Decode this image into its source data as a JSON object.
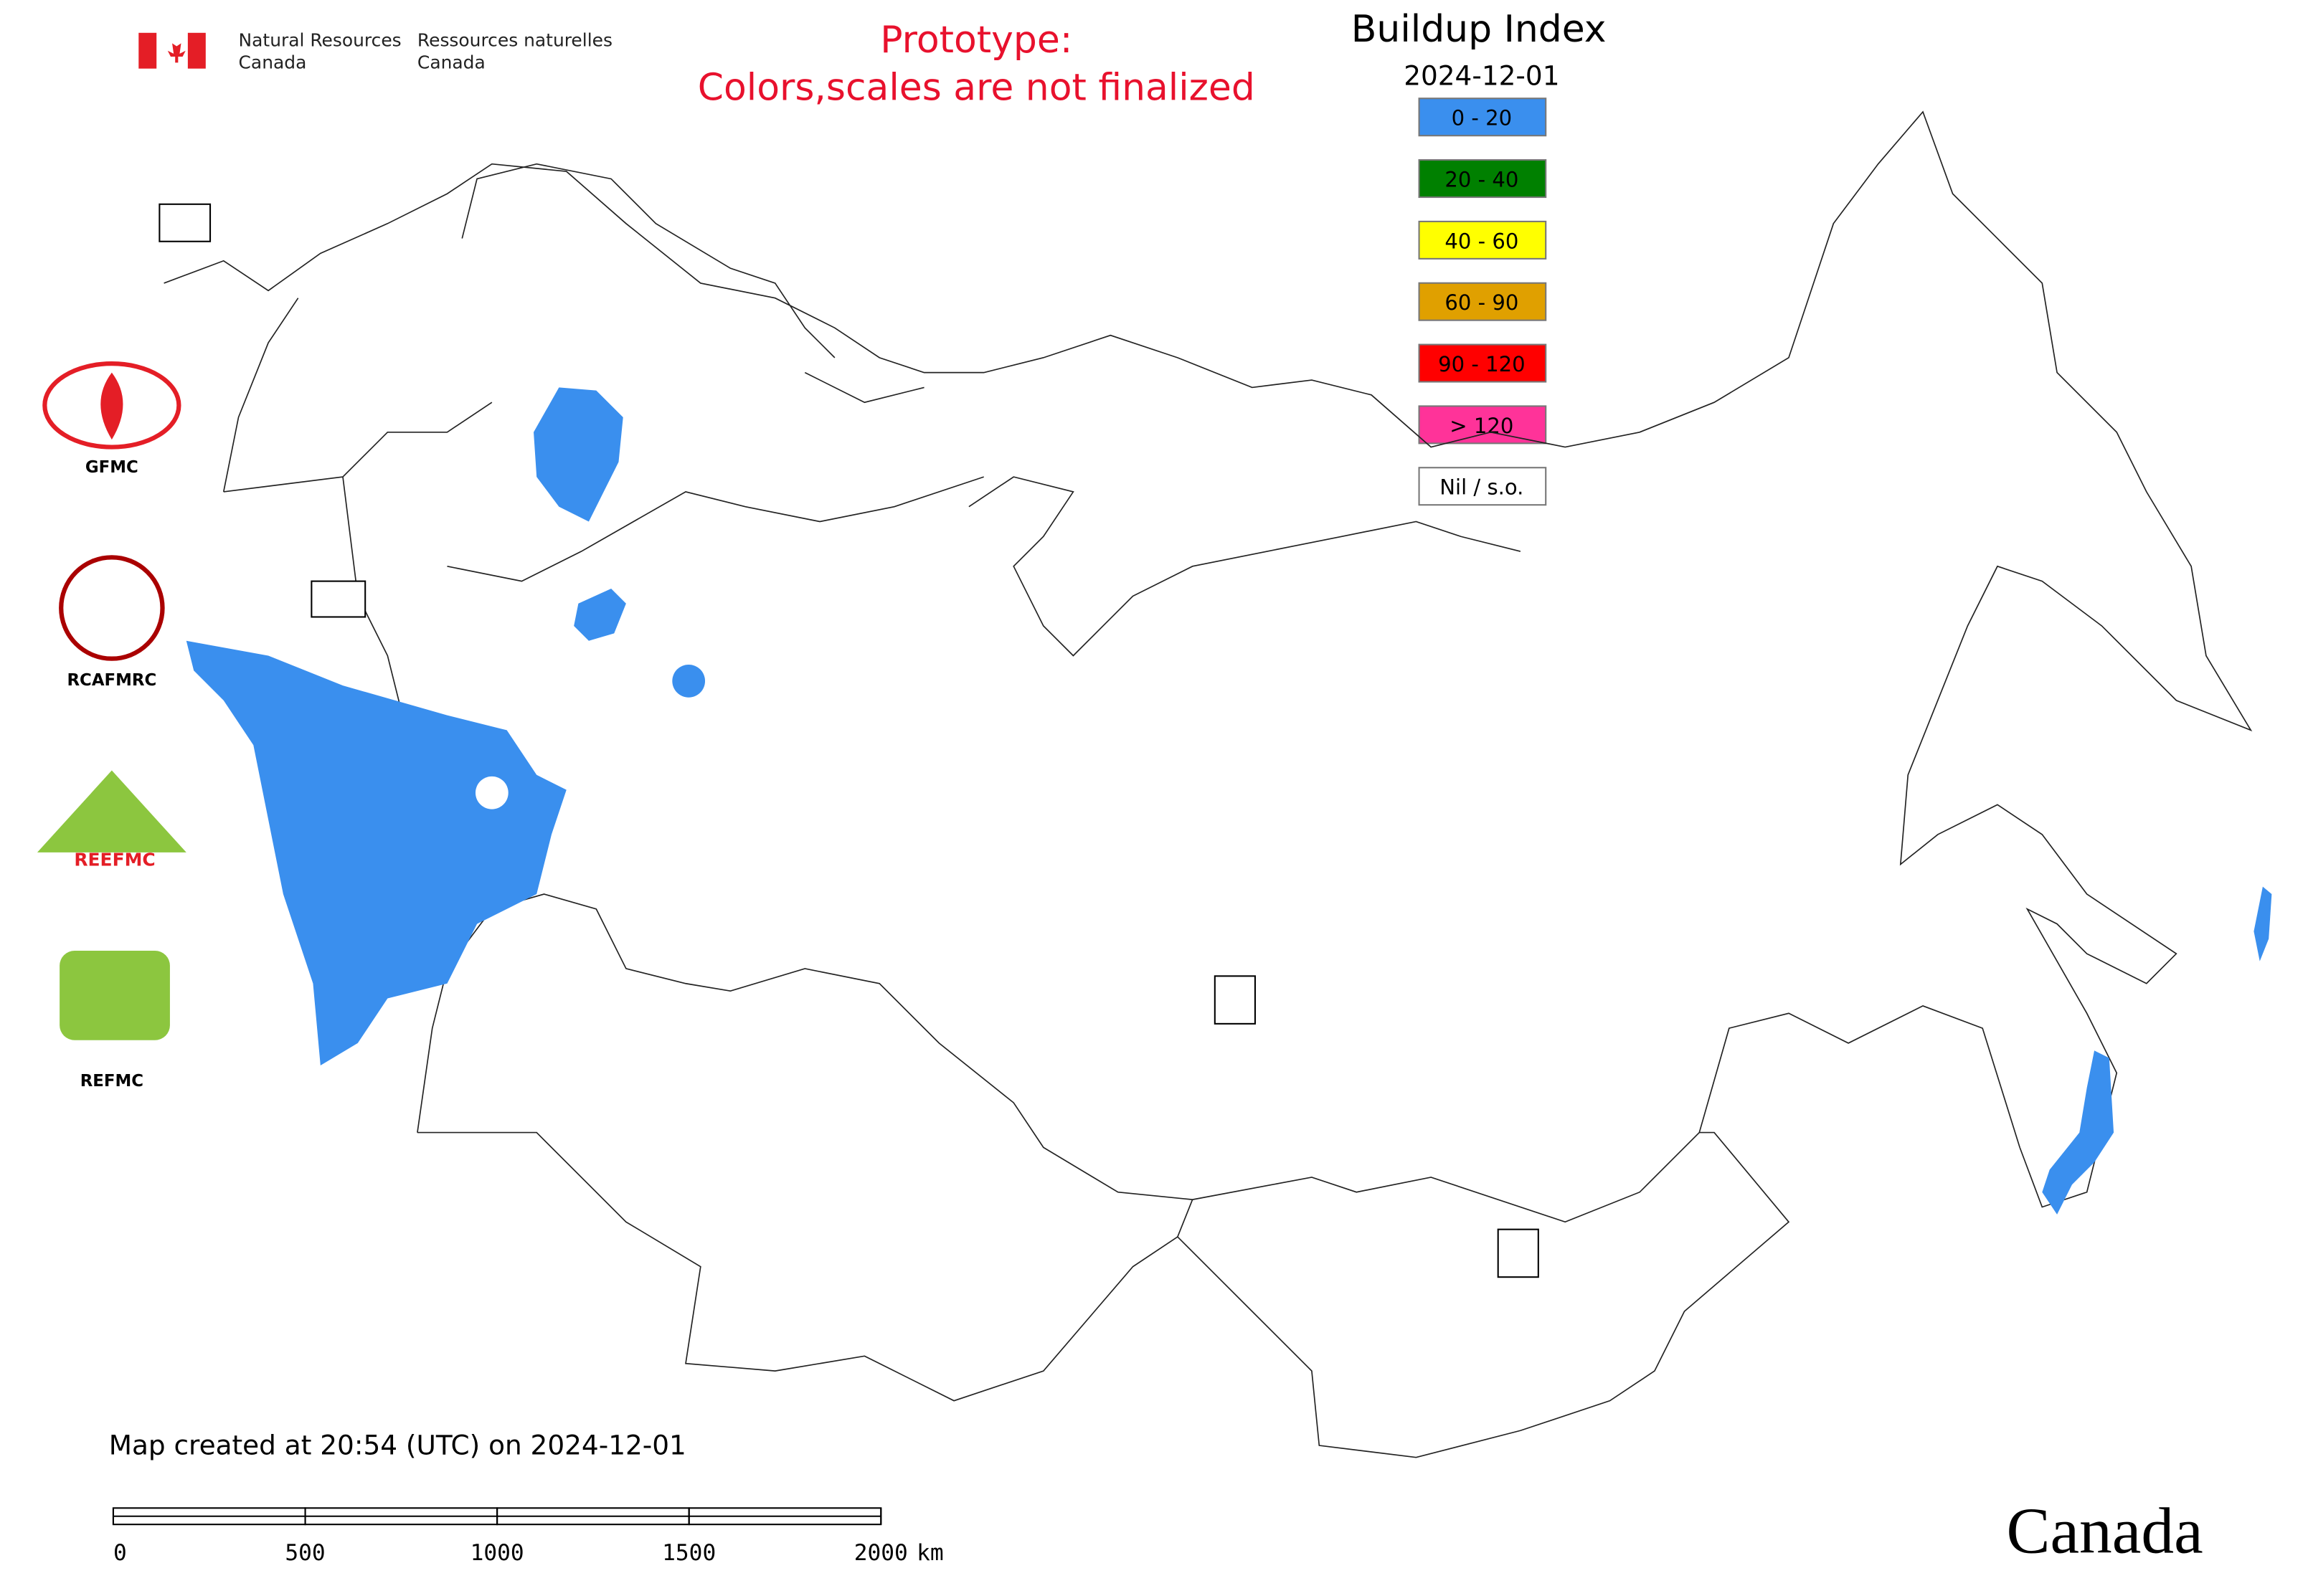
{
  "header": {
    "agency_en_1": "Natural Resources",
    "agency_en_2": "Canada",
    "agency_fr_1": "Ressources naturelles",
    "agency_fr_2": "Canada",
    "notice_1": "Prototype:",
    "notice_2": "Colors,scales are not finalized"
  },
  "map": {
    "title": "Buildup Index",
    "date": "2024-12-01",
    "legend": [
      {
        "label": "0 - 20",
        "color": "#3a8fee"
      },
      {
        "label": "20 - 40",
        "color": "#008000"
      },
      {
        "label": "40 - 60",
        "color": "#ffff00"
      },
      {
        "label": "60 - 90",
        "color": "#e0a000"
      },
      {
        "label": "90 - 120",
        "color": "#ff0000"
      },
      {
        "label": "> 120",
        "color": "#ff3399"
      },
      {
        "label": "Nil / s.o.",
        "color": "#ffffff"
      }
    ],
    "logos": {
      "gfmc": "GFMC",
      "rcafmrc": "RCAFMRC",
      "reefmc": "REEFMC",
      "refmc": "REFMC"
    },
    "footer": "Map created at 20:54 (UTC) on 2024-12-01",
    "scale_bar": {
      "ticks": [
        0,
        500,
        1000,
        1500,
        2000
      ],
      "unit": "km"
    },
    "wordmark": "Canada"
  }
}
